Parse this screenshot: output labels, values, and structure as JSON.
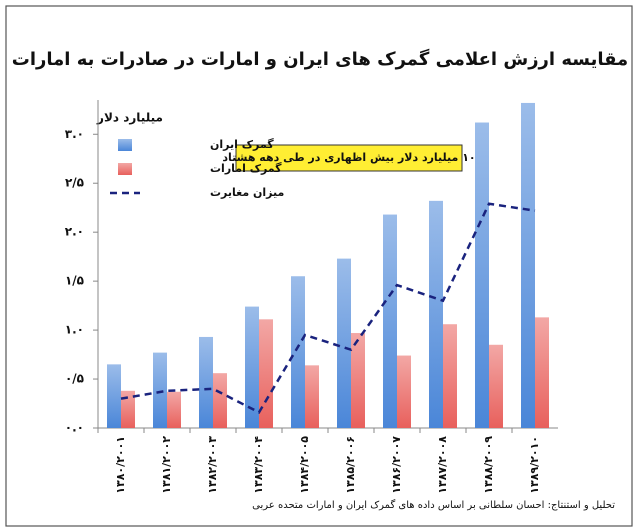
{
  "chart_data": {
    "type": "bar",
    "title": "مقایسه ارزش اعلامی گمرک های ایران و امارات در صادرات به امارات",
    "y_label": "میلیارد دلار",
    "annotation": "۱۰ میلیارد دلار بیش اظهاری در طی دهه هشتاد",
    "source": "تحلیل و استنتاج: احسان سلطانی بر اساس داده های گمرک ایران و امارات متحده عربی",
    "categories": [
      "۱۳۸۰/۲۰۰۱",
      "۱۳۸۱/۲۰۰۲",
      "۱۳۸۲/۲۰۰۳",
      "۱۳۸۳/۲۰۰۴",
      "۱۳۸۴/۲۰۰۵",
      "۱۳۸۵/۲۰۰۶",
      "۱۳۸۶/۲۰۰۷",
      "۱۳۸۷/۲۰۰۸",
      "۱۳۸۸/۲۰۰۹",
      "۱۳۸۹/۲۰۱۰"
    ],
    "series": [
      {
        "name": "گمرک ایران",
        "color": "#4a86d8",
        "type": "bar",
        "values": [
          0.65,
          0.77,
          0.93,
          1.24,
          1.55,
          1.73,
          2.18,
          2.32,
          3.12,
          3.32
        ]
      },
      {
        "name": "گمرک امارات",
        "color": "#e8605c",
        "type": "bar",
        "values": [
          0.38,
          0.37,
          0.56,
          1.11,
          0.64,
          0.97,
          0.74,
          1.06,
          0.85,
          1.13
        ]
      },
      {
        "name": "میزان مغایرت",
        "color": "#1a237e",
        "type": "line",
        "dashed": true,
        "values": [
          0.3,
          0.38,
          0.4,
          0.16,
          0.95,
          0.8,
          1.46,
          1.3,
          2.29,
          2.22
        ]
      }
    ],
    "ylim": [
      0,
      3.35
    ],
    "yticks": [
      {
        "value": 0,
        "label": "۰.۰"
      },
      {
        "value": 0.5,
        "label": "۰/۵"
      },
      {
        "value": 1,
        "label": "۱.۰"
      },
      {
        "value": 1.5,
        "label": "۱/۵"
      },
      {
        "value": 2,
        "label": "۲.۰"
      },
      {
        "value": 2.5,
        "label": "۲/۵"
      },
      {
        "value": 3,
        "label": "۳.۰"
      }
    ],
    "legend": "upper-left",
    "grid": false
  }
}
